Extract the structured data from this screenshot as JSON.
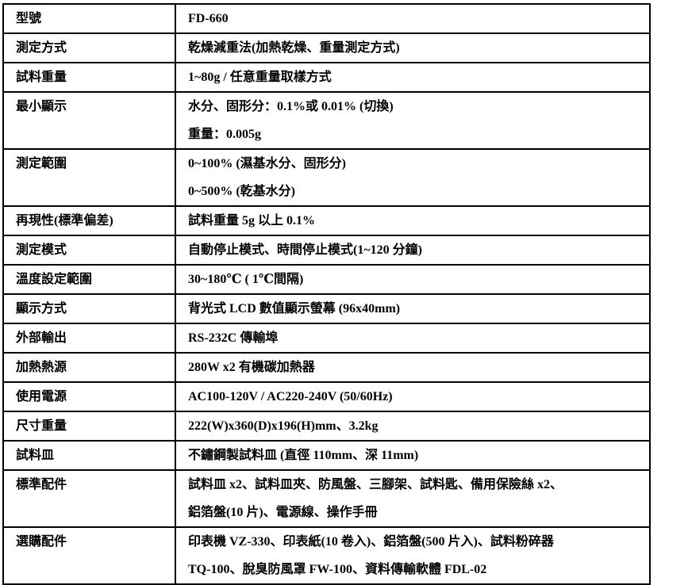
{
  "spec_table": {
    "rows": [
      {
        "label": "型號",
        "values": [
          "FD-660"
        ]
      },
      {
        "label": "測定方式",
        "values": [
          "乾燥減重法(加熱乾燥、重量測定方式)"
        ]
      },
      {
        "label": "試料重量",
        "values": [
          "1~80g / 任意重量取樣方式"
        ]
      },
      {
        "label": "最小顯示",
        "values": [
          "水分、固形分：0.1%或 0.01% (切換)",
          "重量：0.005g"
        ]
      },
      {
        "label": "測定範圍",
        "values": [
          "0~100% (濕基水分、固形分)",
          "0~500% (乾基水分)"
        ]
      },
      {
        "label": "再現性(標準偏差)",
        "values": [
          "試料重量 5g 以上 0.1%"
        ]
      },
      {
        "label": "測定模式",
        "values": [
          "自動停止模式、時間停止模式(1~120 分鐘)"
        ]
      },
      {
        "label": "溫度設定範圍",
        "values": [
          "30~180℃ ( 1℃間隔)"
        ]
      },
      {
        "label": "顯示方式",
        "values": [
          "背光式 LCD 數值顯示螢幕 (96x40mm)"
        ]
      },
      {
        "label": "外部輸出",
        "values": [
          "RS-232C 傳輸埠"
        ]
      },
      {
        "label": "加熱熱源",
        "values": [
          "280W x2 有機碳加熱器"
        ]
      },
      {
        "label": "使用電源",
        "values": [
          "AC100-120V / AC220-240V (50/60Hz)"
        ]
      },
      {
        "label": "尺寸重量",
        "values": [
          "222(W)x360(D)x196(H)mm、3.2kg"
        ]
      },
      {
        "label": "試料皿",
        "values": [
          "不鏽鋼製試料皿 (直徑 110mm、深 11mm)"
        ]
      },
      {
        "label": "標準配件",
        "values": [
          "試料皿 x2、試料皿夾、防風盤、三腳架、試料匙、備用保險絲 x2、",
          "鋁箔盤(10 片)、電源線、操作手冊"
        ]
      },
      {
        "label": "選購配件",
        "values": [
          "印表機 VZ-330、印表紙(10 卷入)、鋁箔盤(500 片入)、試料粉碎器",
          "TQ-100、脫臭防風罩 FW-100、資料傳輸軟體 FDL-02"
        ]
      }
    ]
  }
}
